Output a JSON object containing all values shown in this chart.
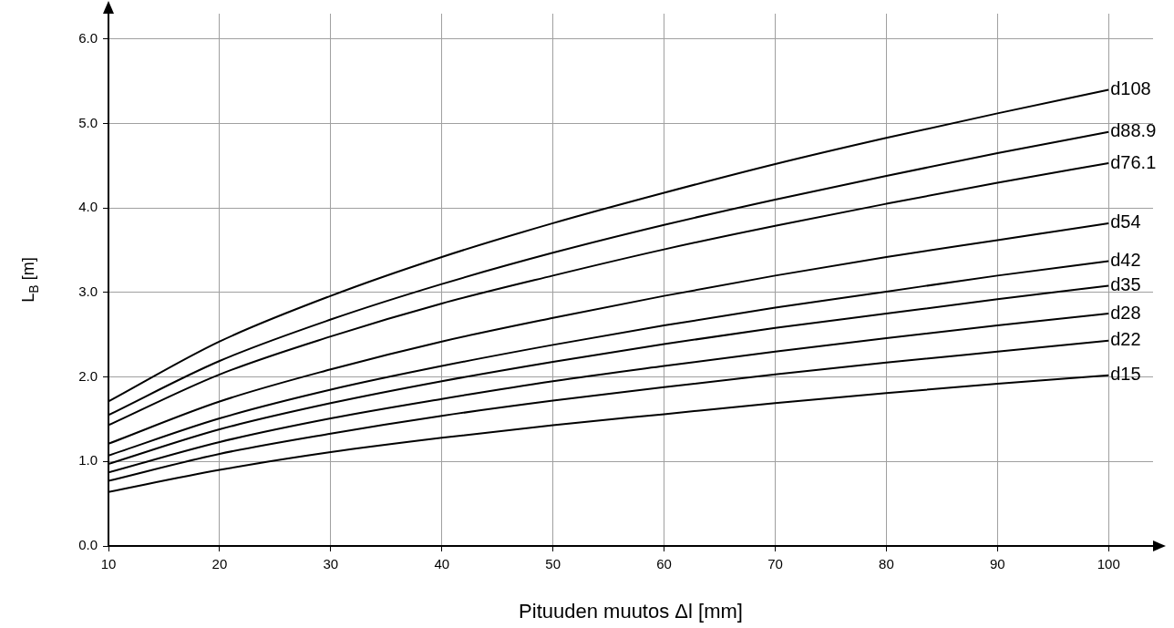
{
  "chart_data": {
    "type": "line",
    "xlabel": "Pituuden muutos Δl [mm]",
    "ylabel": "L$_{B}$ [m]",
    "x": [
      10,
      20,
      30,
      40,
      50,
      60,
      70,
      80,
      90,
      100
    ],
    "xlim": [
      10,
      104
    ],
    "ylim": [
      0,
      6.3
    ],
    "xticks": [
      10,
      20,
      30,
      40,
      50,
      60,
      70,
      80,
      90,
      100
    ],
    "yticks": [
      {
        "value": 0,
        "label": "0.0"
      },
      {
        "value": 1,
        "label": "1.0"
      },
      {
        "value": 2,
        "label": "2.0"
      },
      {
        "value": 3,
        "label": "3.0"
      },
      {
        "value": 4,
        "label": "4.0"
      },
      {
        "value": 5,
        "label": "5.0"
      },
      {
        "value": 6,
        "label": "6.0"
      }
    ],
    "grid": true,
    "legend": false,
    "marker": "none",
    "line_style": "solid",
    "series": [
      {
        "name": "d108",
        "color": "#000000",
        "values": [
          1.71,
          2.42,
          2.96,
          3.42,
          3.82,
          4.18,
          4.52,
          4.83,
          5.12,
          5.4
        ]
      },
      {
        "name": "d88.9",
        "color": "#000000",
        "values": [
          1.55,
          2.19,
          2.68,
          3.1,
          3.47,
          3.8,
          4.1,
          4.38,
          4.65,
          4.9
        ]
      },
      {
        "name": "d76.1",
        "color": "#000000",
        "values": [
          1.43,
          2.03,
          2.48,
          2.87,
          3.2,
          3.51,
          3.79,
          4.05,
          4.3,
          4.53
        ]
      },
      {
        "name": "d54",
        "color": "#000000",
        "values": [
          1.21,
          1.71,
          2.09,
          2.42,
          2.7,
          2.96,
          3.2,
          3.42,
          3.62,
          3.82
        ]
      },
      {
        "name": "d42",
        "color": "#000000",
        "values": [
          1.07,
          1.51,
          1.85,
          2.13,
          2.38,
          2.61,
          2.82,
          3.01,
          3.2,
          3.37
        ]
      },
      {
        "name": "d35",
        "color": "#000000",
        "values": [
          0.97,
          1.38,
          1.69,
          1.95,
          2.18,
          2.39,
          2.58,
          2.75,
          2.92,
          3.08
        ]
      },
      {
        "name": "d28",
        "color": "#000000",
        "values": [
          0.87,
          1.23,
          1.51,
          1.74,
          1.95,
          2.13,
          2.3,
          2.46,
          2.61,
          2.75
        ]
      },
      {
        "name": "d22",
        "color": "#000000",
        "values": [
          0.77,
          1.09,
          1.33,
          1.54,
          1.72,
          1.88,
          2.03,
          2.17,
          2.3,
          2.43
        ]
      },
      {
        "name": "d15",
        "color": "#000000",
        "values": [
          0.64,
          0.9,
          1.11,
          1.28,
          1.43,
          1.56,
          1.69,
          1.81,
          1.92,
          2.02
        ]
      }
    ]
  }
}
